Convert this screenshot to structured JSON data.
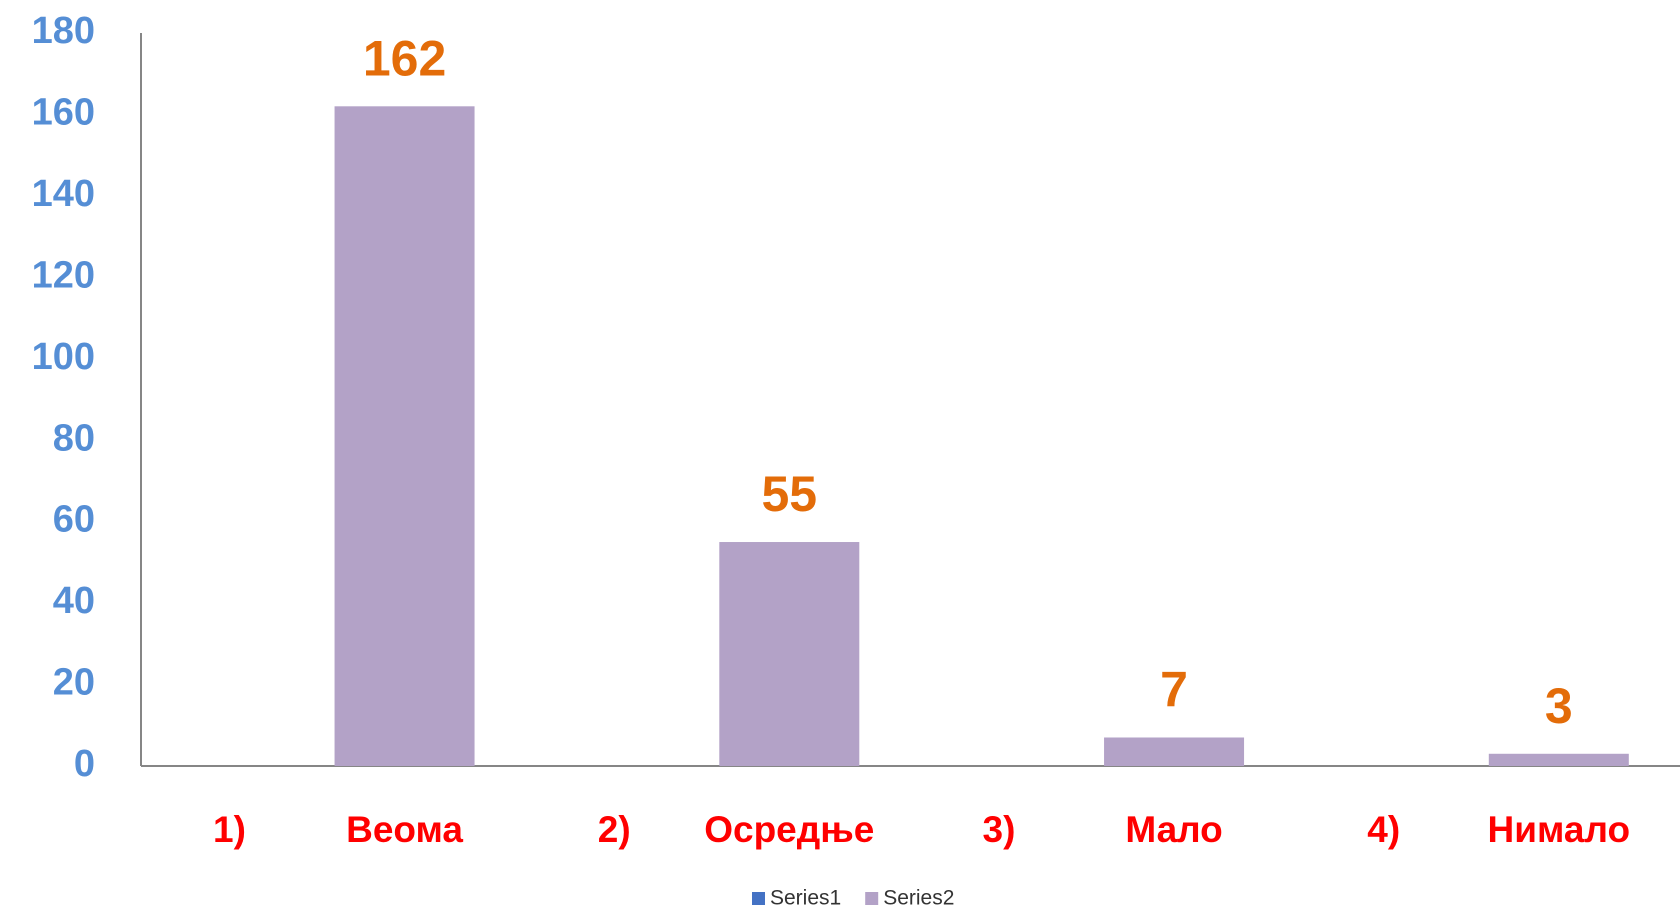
{
  "chart_data": {
    "type": "bar",
    "categories": [
      [
        "1)",
        "Веома"
      ],
      [
        "2)",
        "Осредње"
      ],
      [
        "3)",
        "Мало"
      ],
      [
        "4)",
        "Нимало"
      ]
    ],
    "series": [
      {
        "name": "Series1",
        "color": "#4472c4",
        "values": [
          null,
          null,
          null,
          null
        ]
      },
      {
        "name": "Series2",
        "color": "#b3a2c7",
        "values": [
          162,
          55,
          7,
          3
        ]
      }
    ],
    "ylim": [
      0,
      180
    ],
    "yticks": [
      0,
      20,
      40,
      60,
      80,
      100,
      120,
      140,
      160,
      180
    ],
    "grid": false,
    "legend": "bottom"
  }
}
